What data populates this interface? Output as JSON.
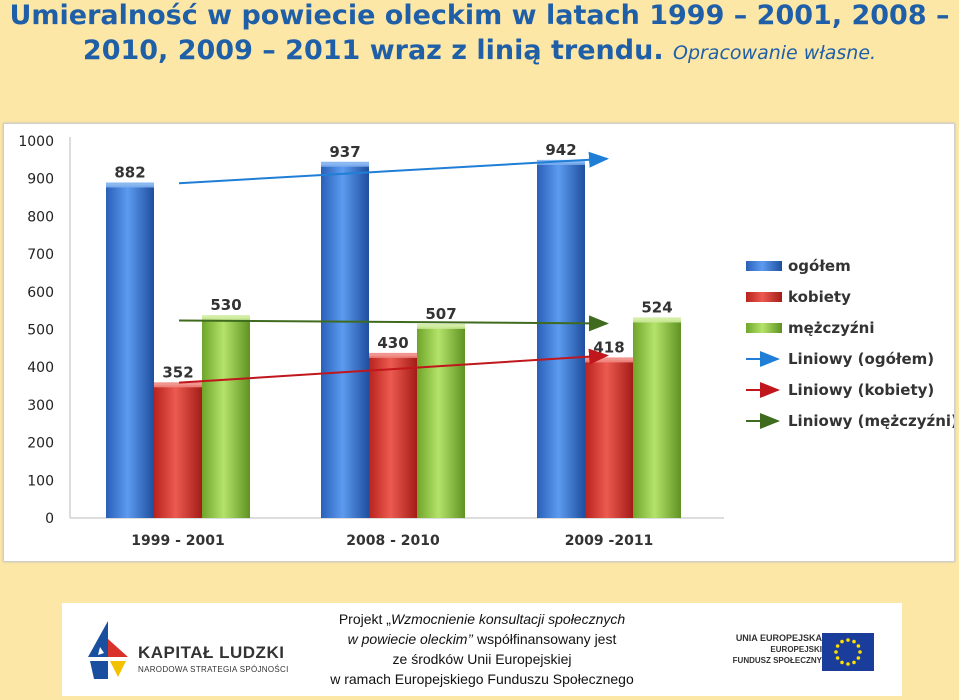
{
  "title": {
    "line1": "Umieralność w powiecie oleckim w latach 1999 – 2001, 2008 –",
    "line2": "2010, 2009 – 2011 wraz z linią trendu.",
    "subtitle": "Opracowanie własne."
  },
  "colors": {
    "background": "#fde7a6",
    "title": "#1f5fa8",
    "ogolem": "#2e6fd1",
    "kobiety": "#d9322b",
    "mezczyzni": "#8dc63f",
    "trend_ogolem": "#1f7fd6",
    "trend_kobiety": "#c0161c",
    "trend_mezczyzni": "#3f6b1e"
  },
  "chart_data": {
    "type": "bar",
    "categories": [
      "1999 - 2001",
      "2008 - 2010",
      "2009 -2011"
    ],
    "series": [
      {
        "name": "ogółem",
        "values": [
          882,
          937,
          942
        ]
      },
      {
        "name": "kobiety",
        "values": [
          352,
          430,
          418
        ]
      },
      {
        "name": "mężczyźni",
        "values": [
          530,
          507,
          524
        ]
      }
    ],
    "trendlines": [
      {
        "name": "Liniowy (ogółem)",
        "start": 888,
        "end": 953
      },
      {
        "name": "Liniowy (kobiety)",
        "start": 359,
        "end": 431
      },
      {
        "name": "Liniowy (mężczyźni)",
        "start": 524,
        "end": 516
      }
    ],
    "ylim": [
      0,
      1000
    ],
    "yticks": [
      "0",
      "100",
      "200",
      "300",
      "400",
      "500",
      "600",
      "700",
      "800",
      "900",
      "1000"
    ],
    "legend_position": "right",
    "grid": false
  },
  "footer": {
    "logo_left_title": "KAPITAŁ LUDZKI",
    "logo_left_subtitle": "NARODOWA STRATEGIA SPÓJNOŚCI",
    "project_line1_prefix": "Projekt „",
    "project_line1_italic": "Wzmocnienie konsultacji społecznych",
    "project_line2_italic": "w powiecie oleckim’’",
    "project_line2_rest": " współfinansowany jest",
    "project_line3": "ze środków  Unii Europejskiej",
    "project_line4": "w ramach Europejskiego Funduszu Społecznego",
    "ue_line1": "UNIA EUROPEJSKA",
    "ue_line2": "EUROPEJSKI",
    "ue_line3": "FUNDUSZ SPOŁECZNY"
  }
}
